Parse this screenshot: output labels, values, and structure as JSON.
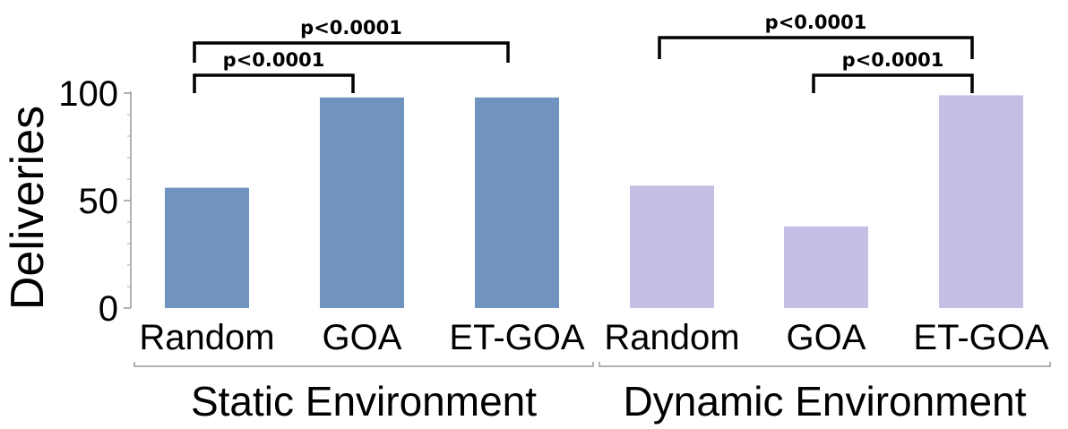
{
  "chart_data": {
    "type": "bar",
    "ylabel": "Deliveries",
    "xlabel": "",
    "ylim": [
      0,
      100
    ],
    "yticks": [
      0,
      50,
      100
    ],
    "groups": [
      {
        "name": "Static Environment",
        "color": "#7094bf",
        "categories": [
          "Random",
          "GOA",
          "ET-GOA"
        ],
        "values": [
          56,
          98,
          98
        ]
      },
      {
        "name": "Dynamic Environment",
        "color": "#c5bfe5",
        "categories": [
          "Random",
          "GOA",
          "ET-GOA"
        ],
        "values": [
          57,
          38,
          99
        ]
      }
    ],
    "significance": [
      {
        "label": "p<0.0001",
        "from": [
          0,
          0
        ],
        "to": [
          0,
          1
        ]
      },
      {
        "label": "p<0.0001",
        "from": [
          0,
          0
        ],
        "to": [
          0,
          2
        ]
      },
      {
        "label": "p<0.0001",
        "from": [
          1,
          0
        ],
        "to": [
          1,
          2
        ]
      },
      {
        "label": "p<0.0001",
        "from": [
          1,
          1
        ],
        "to": [
          1,
          2
        ]
      }
    ]
  }
}
